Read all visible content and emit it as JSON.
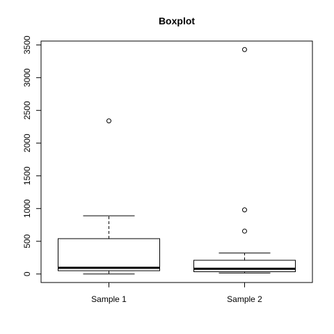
{
  "chart_data": {
    "type": "boxplot",
    "title": "Boxplot",
    "categories": [
      "Sample 1",
      "Sample 2"
    ],
    "series": [
      {
        "name": "Sample 1",
        "whisker_low": 0,
        "q1": 50,
        "median": 95,
        "q3": 540,
        "whisker_high": 890,
        "outliers": [
          2340
        ]
      },
      {
        "name": "Sample 2",
        "whisker_low": 15,
        "q1": 35,
        "median": 80,
        "q3": 210,
        "whisker_high": 320,
        "outliers": [
          655,
          980,
          3430
        ]
      }
    ],
    "y_ticks": [
      "0",
      "500",
      "1000",
      "1500",
      "2000",
      "2500",
      "3000",
      "3500"
    ],
    "ylim": [
      -130,
      3560
    ],
    "grid": false
  }
}
